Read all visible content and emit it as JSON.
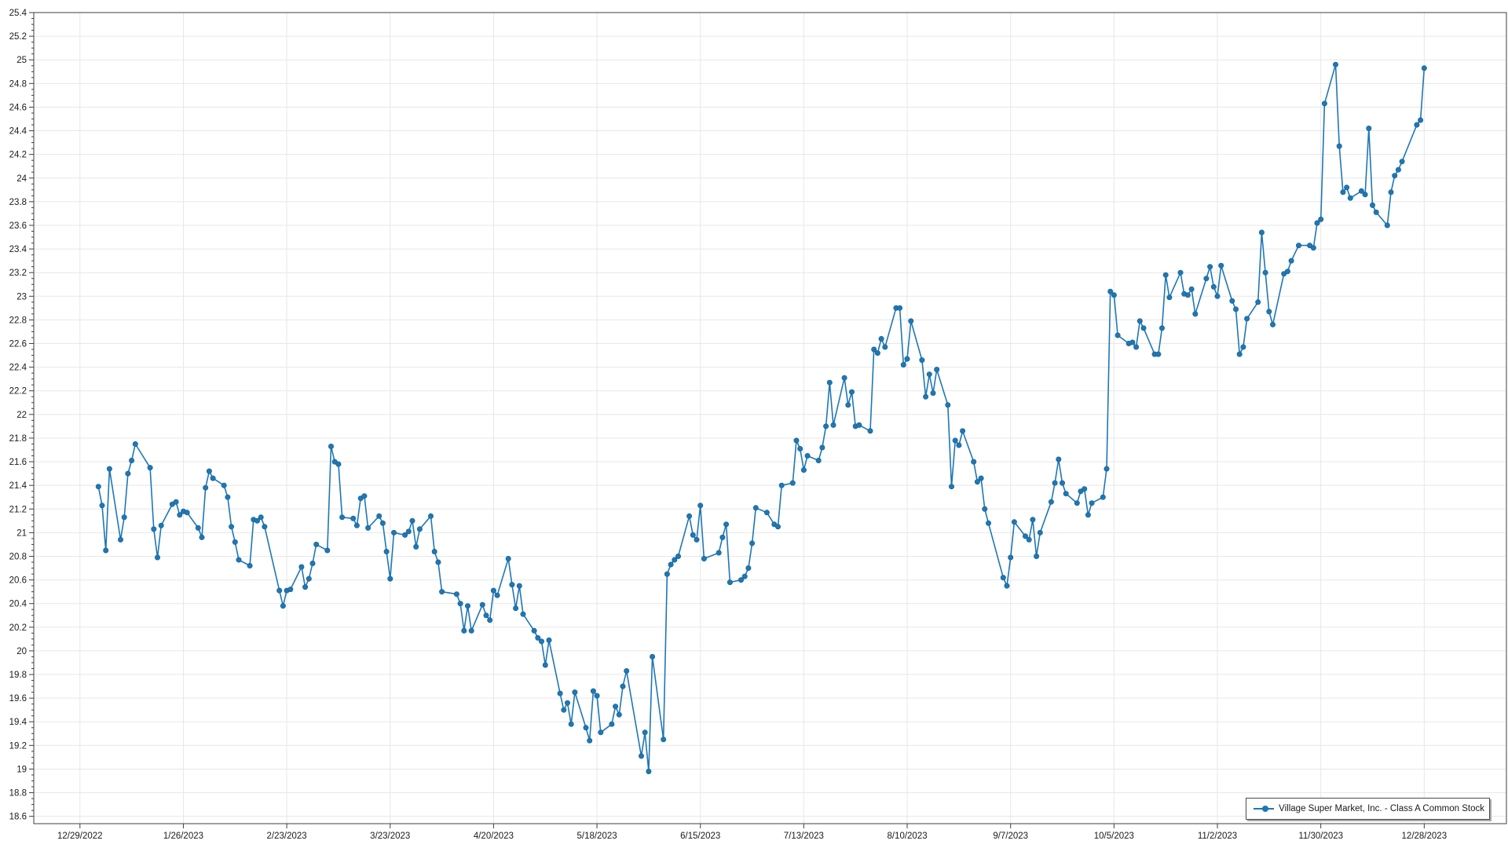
{
  "legend": {
    "label": "Village Super Market, Inc. - Class A Common Stock"
  },
  "colors": {
    "series": "#1f77b4",
    "grid": "#e7e7e7",
    "axis": "#3f3f3f",
    "tick_label": "#1a1a1a",
    "background": "#ffffff",
    "legend_border": "#4a4a4a"
  },
  "chart_data": {
    "type": "line",
    "title": "",
    "xlabel": "",
    "ylabel": "",
    "grid": true,
    "legend_position": "bottom-right",
    "x_epoch": "12/29/2022",
    "x_ticks": [
      "12/29/2022",
      "1/26/2023",
      "2/23/2023",
      "3/23/2023",
      "4/20/2023",
      "5/18/2023",
      "6/15/2023",
      "7/13/2023",
      "8/10/2023",
      "9/7/2023",
      "10/5/2023",
      "11/2/2023",
      "11/30/2023",
      "12/28/2023"
    ],
    "y_axis": {
      "min": 18.6,
      "max": 25.4,
      "step": 0.2,
      "minor_step": 0.05
    },
    "series": [
      {
        "name": "Village Super Market, Inc. - Class A Common Stock",
        "color": "#1f77b4",
        "marker": "circle",
        "data": [
          [
            "1/3/2023",
            21.39
          ],
          [
            "1/4/2023",
            21.23
          ],
          [
            "1/5/2023",
            20.85
          ],
          [
            "1/6/2023",
            21.54
          ],
          [
            "1/9/2023",
            20.94
          ],
          [
            "1/10/2023",
            21.13
          ],
          [
            "1/11/2023",
            21.5
          ],
          [
            "1/12/2023",
            21.61
          ],
          [
            "1/13/2023",
            21.75
          ],
          [
            "1/17/2023",
            21.55
          ],
          [
            "1/18/2023",
            21.03
          ],
          [
            "1/19/2023",
            20.79
          ],
          [
            "1/20/2023",
            21.06
          ],
          [
            "1/23/2023",
            21.24
          ],
          [
            "1/24/2023",
            21.26
          ],
          [
            "1/25/2023",
            21.15
          ],
          [
            "1/26/2023",
            21.18
          ],
          [
            "1/27/2023",
            21.17
          ],
          [
            "1/30/2023",
            21.04
          ],
          [
            "1/31/2023",
            20.96
          ],
          [
            "2/1/2023",
            21.38
          ],
          [
            "2/2/2023",
            21.52
          ],
          [
            "2/3/2023",
            21.46
          ],
          [
            "2/6/2023",
            21.4
          ],
          [
            "2/7/2023",
            21.3
          ],
          [
            "2/8/2023",
            21.05
          ],
          [
            "2/9/2023",
            20.92
          ],
          [
            "2/10/2023",
            20.77
          ],
          [
            "2/13/2023",
            20.72
          ],
          [
            "2/14/2023",
            21.11
          ],
          [
            "2/15/2023",
            21.1
          ],
          [
            "2/16/2023",
            21.13
          ],
          [
            "2/17/2023",
            21.05
          ],
          [
            "2/21/2023",
            20.51
          ],
          [
            "2/22/2023",
            20.38
          ],
          [
            "2/23/2023",
            20.51
          ],
          [
            "2/24/2023",
            20.52
          ],
          [
            "2/27/2023",
            20.71
          ],
          [
            "2/28/2023",
            20.54
          ],
          [
            "3/1/2023",
            20.61
          ],
          [
            "3/2/2023",
            20.74
          ],
          [
            "3/3/2023",
            20.9
          ],
          [
            "3/6/2023",
            20.85
          ],
          [
            "3/7/2023",
            21.73
          ],
          [
            "3/8/2023",
            21.6
          ],
          [
            "3/9/2023",
            21.58
          ],
          [
            "3/10/2023",
            21.13
          ],
          [
            "3/13/2023",
            21.12
          ],
          [
            "3/14/2023",
            21.06
          ],
          [
            "3/15/2023",
            21.29
          ],
          [
            "3/16/2023",
            21.31
          ],
          [
            "3/17/2023",
            21.04
          ],
          [
            "3/20/2023",
            21.14
          ],
          [
            "3/21/2023",
            21.08
          ],
          [
            "3/22/2023",
            20.84
          ],
          [
            "3/23/2023",
            20.61
          ],
          [
            "3/24/2023",
            21.0
          ],
          [
            "3/27/2023",
            20.98
          ],
          [
            "3/28/2023",
            21.01
          ],
          [
            "3/29/2023",
            21.1
          ],
          [
            "3/30/2023",
            20.88
          ],
          [
            "3/31/2023",
            21.03
          ],
          [
            "4/3/2023",
            21.14
          ],
          [
            "4/4/2023",
            20.84
          ],
          [
            "4/5/2023",
            20.75
          ],
          [
            "4/6/2023",
            20.5
          ],
          [
            "4/10/2023",
            20.48
          ],
          [
            "4/11/2023",
            20.4
          ],
          [
            "4/12/2023",
            20.17
          ],
          [
            "4/13/2023",
            20.38
          ],
          [
            "4/14/2023",
            20.17
          ],
          [
            "4/17/2023",
            20.39
          ],
          [
            "4/18/2023",
            20.3
          ],
          [
            "4/19/2023",
            20.26
          ],
          [
            "4/20/2023",
            20.51
          ],
          [
            "4/21/2023",
            20.47
          ],
          [
            "4/24/2023",
            20.78
          ],
          [
            "4/25/2023",
            20.56
          ],
          [
            "4/26/2023",
            20.36
          ],
          [
            "4/27/2023",
            20.55
          ],
          [
            "4/28/2023",
            20.31
          ],
          [
            "5/1/2023",
            20.17
          ],
          [
            "5/2/2023",
            20.11
          ],
          [
            "5/3/2023",
            20.08
          ],
          [
            "5/4/2023",
            19.88
          ],
          [
            "5/5/2023",
            20.09
          ],
          [
            "5/8/2023",
            19.64
          ],
          [
            "5/9/2023",
            19.5
          ],
          [
            "5/10/2023",
            19.56
          ],
          [
            "5/11/2023",
            19.38
          ],
          [
            "5/12/2023",
            19.65
          ],
          [
            "5/15/2023",
            19.35
          ],
          [
            "5/16/2023",
            19.24
          ],
          [
            "5/17/2023",
            19.66
          ],
          [
            "5/18/2023",
            19.62
          ],
          [
            "5/19/2023",
            19.31
          ],
          [
            "5/22/2023",
            19.38
          ],
          [
            "5/23/2023",
            19.53
          ],
          [
            "5/24/2023",
            19.46
          ],
          [
            "5/25/2023",
            19.7
          ],
          [
            "5/26/2023",
            19.83
          ],
          [
            "5/30/2023",
            19.11
          ],
          [
            "5/31/2023",
            19.31
          ],
          [
            "6/1/2023",
            18.98
          ],
          [
            "6/2/2023",
            19.95
          ],
          [
            "6/5/2023",
            19.25
          ],
          [
            "6/6/2023",
            20.65
          ],
          [
            "6/7/2023",
            20.73
          ],
          [
            "6/8/2023",
            20.77
          ],
          [
            "6/9/2023",
            20.8
          ],
          [
            "6/12/2023",
            21.14
          ],
          [
            "6/13/2023",
            20.98
          ],
          [
            "6/14/2023",
            20.94
          ],
          [
            "6/15/2023",
            21.23
          ],
          [
            "6/16/2023",
            20.78
          ],
          [
            "6/20/2023",
            20.83
          ],
          [
            "6/21/2023",
            20.96
          ],
          [
            "6/22/2023",
            21.07
          ],
          [
            "6/23/2023",
            20.58
          ],
          [
            "6/26/2023",
            20.6
          ],
          [
            "6/27/2023",
            20.63
          ],
          [
            "6/28/2023",
            20.7
          ],
          [
            "6/29/2023",
            20.91
          ],
          [
            "6/30/2023",
            21.21
          ],
          [
            "7/3/2023",
            21.17
          ],
          [
            "7/5/2023",
            21.07
          ],
          [
            "7/6/2023",
            21.05
          ],
          [
            "7/7/2023",
            21.4
          ],
          [
            "7/10/2023",
            21.42
          ],
          [
            "7/11/2023",
            21.78
          ],
          [
            "7/12/2023",
            21.71
          ],
          [
            "7/13/2023",
            21.53
          ],
          [
            "7/14/2023",
            21.65
          ],
          [
            "7/17/2023",
            21.61
          ],
          [
            "7/18/2023",
            21.72
          ],
          [
            "7/19/2023",
            21.9
          ],
          [
            "7/20/2023",
            22.27
          ],
          [
            "7/21/2023",
            21.91
          ],
          [
            "7/24/2023",
            22.31
          ],
          [
            "7/25/2023",
            22.08
          ],
          [
            "7/26/2023",
            22.19
          ],
          [
            "7/27/2023",
            21.9
          ],
          [
            "7/28/2023",
            21.91
          ],
          [
            "7/31/2023",
            21.86
          ],
          [
            "8/1/2023",
            22.55
          ],
          [
            "8/2/2023",
            22.52
          ],
          [
            "8/3/2023",
            22.64
          ],
          [
            "8/4/2023",
            22.57
          ],
          [
            "8/7/2023",
            22.9
          ],
          [
            "8/8/2023",
            22.9
          ],
          [
            "8/9/2023",
            22.42
          ],
          [
            "8/10/2023",
            22.47
          ],
          [
            "8/11/2023",
            22.79
          ],
          [
            "8/14/2023",
            22.46
          ],
          [
            "8/15/2023",
            22.15
          ],
          [
            "8/16/2023",
            22.34
          ],
          [
            "8/17/2023",
            22.18
          ],
          [
            "8/18/2023",
            22.38
          ],
          [
            "8/21/2023",
            22.08
          ],
          [
            "8/22/2023",
            21.39
          ],
          [
            "8/23/2023",
            21.78
          ],
          [
            "8/24/2023",
            21.74
          ],
          [
            "8/25/2023",
            21.86
          ],
          [
            "8/28/2023",
            21.6
          ],
          [
            "8/29/2023",
            21.43
          ],
          [
            "8/30/2023",
            21.46
          ],
          [
            "8/31/2023",
            21.2
          ],
          [
            "9/1/2023",
            21.08
          ],
          [
            "9/5/2023",
            20.62
          ],
          [
            "9/6/2023",
            20.55
          ],
          [
            "9/7/2023",
            20.79
          ],
          [
            "9/8/2023",
            21.09
          ],
          [
            "9/11/2023",
            20.97
          ],
          [
            "9/12/2023",
            20.94
          ],
          [
            "9/13/2023",
            21.11
          ],
          [
            "9/14/2023",
            20.8
          ],
          [
            "9/15/2023",
            21.0
          ],
          [
            "9/18/2023",
            21.26
          ],
          [
            "9/19/2023",
            21.42
          ],
          [
            "9/20/2023",
            21.62
          ],
          [
            "9/21/2023",
            21.42
          ],
          [
            "9/22/2023",
            21.33
          ],
          [
            "9/25/2023",
            21.25
          ],
          [
            "9/26/2023",
            21.35
          ],
          [
            "9/27/2023",
            21.37
          ],
          [
            "9/28/2023",
            21.15
          ],
          [
            "9/29/2023",
            21.25
          ],
          [
            "10/2/2023",
            21.3
          ],
          [
            "10/3/2023",
            21.54
          ],
          [
            "10/4/2023",
            23.04
          ],
          [
            "10/5/2023",
            23.01
          ],
          [
            "10/6/2023",
            22.67
          ],
          [
            "10/9/2023",
            22.6
          ],
          [
            "10/10/2023",
            22.61
          ],
          [
            "10/11/2023",
            22.57
          ],
          [
            "10/12/2023",
            22.79
          ],
          [
            "10/13/2023",
            22.73
          ],
          [
            "10/16/2023",
            22.51
          ],
          [
            "10/17/2023",
            22.51
          ],
          [
            "10/18/2023",
            22.73
          ],
          [
            "10/19/2023",
            23.18
          ],
          [
            "10/20/2023",
            22.99
          ],
          [
            "10/23/2023",
            23.2
          ],
          [
            "10/24/2023",
            23.02
          ],
          [
            "10/25/2023",
            23.01
          ],
          [
            "10/26/2023",
            23.06
          ],
          [
            "10/27/2023",
            22.85
          ],
          [
            "10/30/2023",
            23.15
          ],
          [
            "10/31/2023",
            23.25
          ],
          [
            "11/1/2023",
            23.08
          ],
          [
            "11/2/2023",
            23.0
          ],
          [
            "11/3/2023",
            23.26
          ],
          [
            "11/6/2023",
            22.96
          ],
          [
            "11/7/2023",
            22.89
          ],
          [
            "11/8/2023",
            22.51
          ],
          [
            "11/9/2023",
            22.57
          ],
          [
            "11/10/2023",
            22.81
          ],
          [
            "11/13/2023",
            22.95
          ],
          [
            "11/14/2023",
            23.54
          ],
          [
            "11/15/2023",
            23.2
          ],
          [
            "11/16/2023",
            22.87
          ],
          [
            "11/17/2023",
            22.76
          ],
          [
            "11/20/2023",
            23.19
          ],
          [
            "11/21/2023",
            23.21
          ],
          [
            "11/22/2023",
            23.3
          ],
          [
            "11/24/2023",
            23.43
          ],
          [
            "11/27/2023",
            23.43
          ],
          [
            "11/28/2023",
            23.41
          ],
          [
            "11/29/2023",
            23.62
          ],
          [
            "11/30/2023",
            23.65
          ],
          [
            "12/1/2023",
            24.63
          ],
          [
            "12/4/2023",
            24.96
          ],
          [
            "12/5/2023",
            24.27
          ],
          [
            "12/6/2023",
            23.88
          ],
          [
            "12/7/2023",
            23.92
          ],
          [
            "12/8/2023",
            23.83
          ],
          [
            "12/11/2023",
            23.89
          ],
          [
            "12/12/2023",
            23.86
          ],
          [
            "12/13/2023",
            24.42
          ],
          [
            "12/14/2023",
            23.77
          ],
          [
            "12/15/2023",
            23.71
          ],
          [
            "12/18/2023",
            23.6
          ],
          [
            "12/19/2023",
            23.88
          ],
          [
            "12/20/2023",
            24.02
          ],
          [
            "12/21/2023",
            24.07
          ],
          [
            "12/22/2023",
            24.14
          ],
          [
            "12/26/2023",
            24.45
          ],
          [
            "12/27/2023",
            24.49
          ],
          [
            "12/28/2023",
            24.93
          ]
        ]
      }
    ]
  }
}
